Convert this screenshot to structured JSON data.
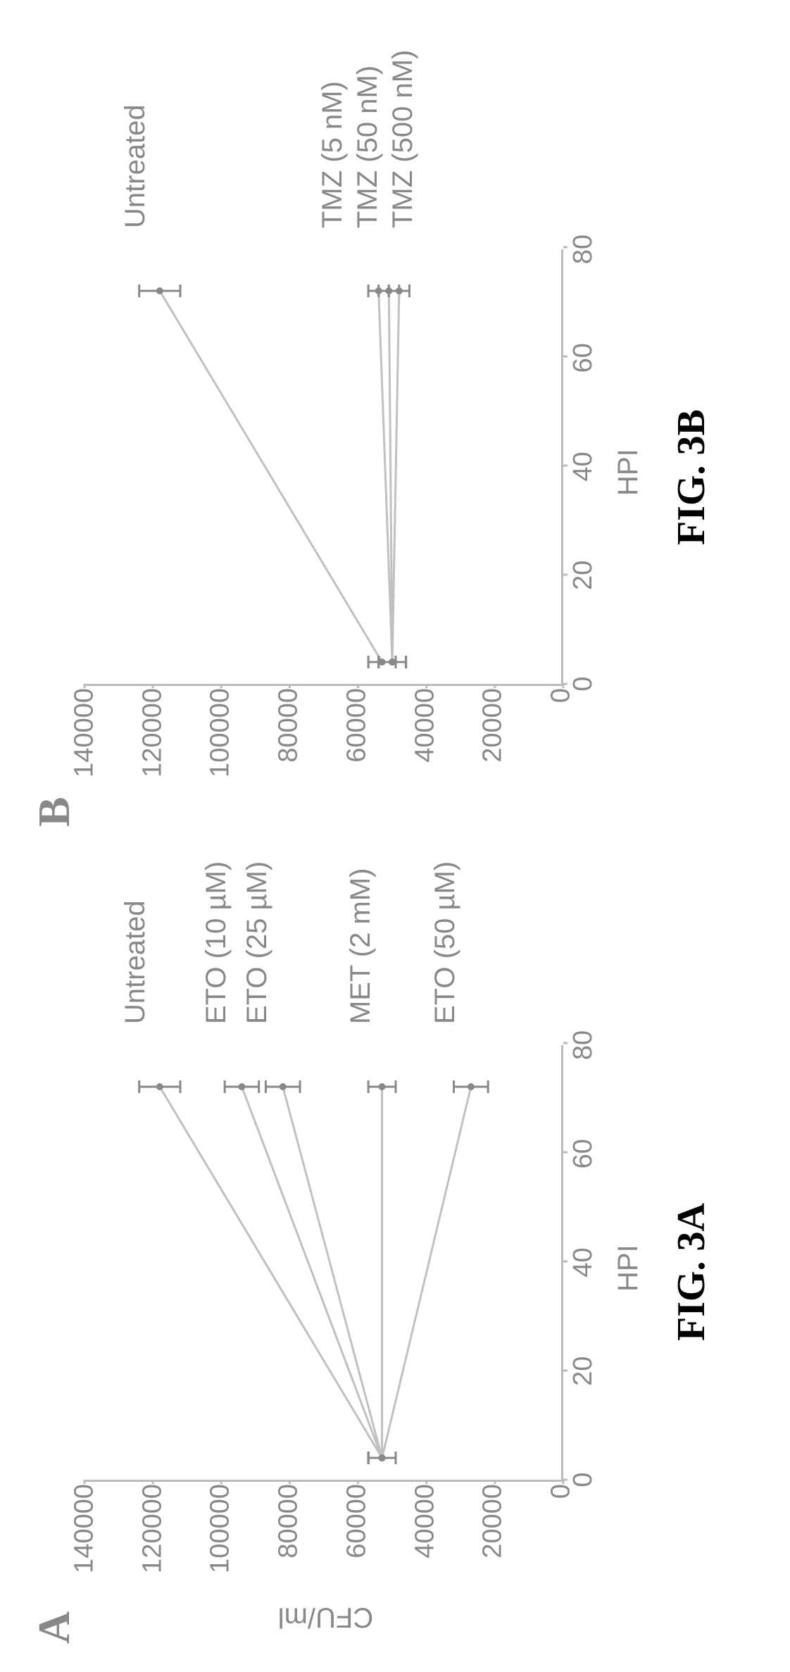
{
  "figure": {
    "orientation": "rotated-ccw-90",
    "panels": [
      {
        "id": "A",
        "panel_letter": "A",
        "fig_caption": "FIG. 3A",
        "chart": {
          "type": "line",
          "y_axis": {
            "label": "CFU/ml",
            "min": 0,
            "max": 140000,
            "tick_step": 20000,
            "ticks": [
              0,
              20000,
              40000,
              60000,
              80000,
              100000,
              120000,
              140000
            ]
          },
          "x_axis": {
            "label": "HPI",
            "min": 0,
            "max": 80,
            "tick_step": 20,
            "ticks": [
              0,
              20,
              40,
              60,
              80
            ]
          },
          "line_color": "#c0c0c0",
          "line_width": 3,
          "marker_color": "#888888",
          "axis_color": "#bbbbbb",
          "text_color": "#888888",
          "label_fontsize": 40,
          "tick_fontsize": 38,
          "error_cap_width": 18,
          "series": [
            {
              "name": "Untreated",
              "label": "Untreated",
              "x": [
                4,
                72
              ],
              "y": [
                53000,
                118000
              ],
              "err": [
                4000,
                6000
              ]
            },
            {
              "name": "ETO-10uM",
              "label": "ETO (10 µM)",
              "x": [
                4,
                72
              ],
              "y": [
                53000,
                94000
              ],
              "err": [
                4000,
                5000
              ]
            },
            {
              "name": "ETO-25uM",
              "label": "ETO (25 µM)",
              "x": [
                4,
                72
              ],
              "y": [
                53000,
                82000
              ],
              "err": [
                4000,
                5000
              ]
            },
            {
              "name": "MET-2mM",
              "label": "MET (2 mM)",
              "x": [
                4,
                72
              ],
              "y": [
                53000,
                53000
              ],
              "err": [
                4000,
                4000
              ]
            },
            {
              "name": "ETO-50uM",
              "label": "ETO (50 µM)",
              "x": [
                4,
                72
              ],
              "y": [
                53000,
                27000
              ],
              "err": [
                4000,
                5000
              ]
            }
          ]
        }
      },
      {
        "id": "B",
        "panel_letter": "B",
        "fig_caption": "FIG. 3B",
        "chart": {
          "type": "line",
          "y_axis": {
            "label": "",
            "min": 0,
            "max": 140000,
            "tick_step": 20000,
            "ticks": [
              0,
              20000,
              40000,
              60000,
              80000,
              100000,
              120000,
              140000
            ]
          },
          "x_axis": {
            "label": "HPI",
            "min": 0,
            "max": 80,
            "tick_step": 20,
            "ticks": [
              0,
              20,
              40,
              60,
              80
            ]
          },
          "line_color": "#c0c0c0",
          "line_width": 3,
          "marker_color": "#888888",
          "axis_color": "#bbbbbb",
          "text_color": "#888888",
          "label_fontsize": 40,
          "tick_fontsize": 38,
          "error_cap_width": 18,
          "series": [
            {
              "name": "Untreated",
              "label": "Untreated",
              "x": [
                4,
                72
              ],
              "y": [
                53000,
                118000
              ],
              "err": [
                4000,
                6000
              ]
            },
            {
              "name": "TMZ-5nM",
              "label": "TMZ (5 nM)",
              "x": [
                4,
                72
              ],
              "y": [
                50000,
                54000
              ],
              "err": [
                4000,
                3000
              ]
            },
            {
              "name": "TMZ-50nM",
              "label": "TMZ (50 nM)",
              "x": [
                4,
                72
              ],
              "y": [
                50000,
                51000
              ],
              "err": [
                4000,
                3000
              ]
            },
            {
              "name": "TMZ-500nM",
              "label": "TMZ (500 nM)",
              "x": [
                4,
                72
              ],
              "y": [
                50000,
                48000
              ],
              "err": [
                4000,
                3000
              ]
            }
          ]
        }
      }
    ]
  }
}
